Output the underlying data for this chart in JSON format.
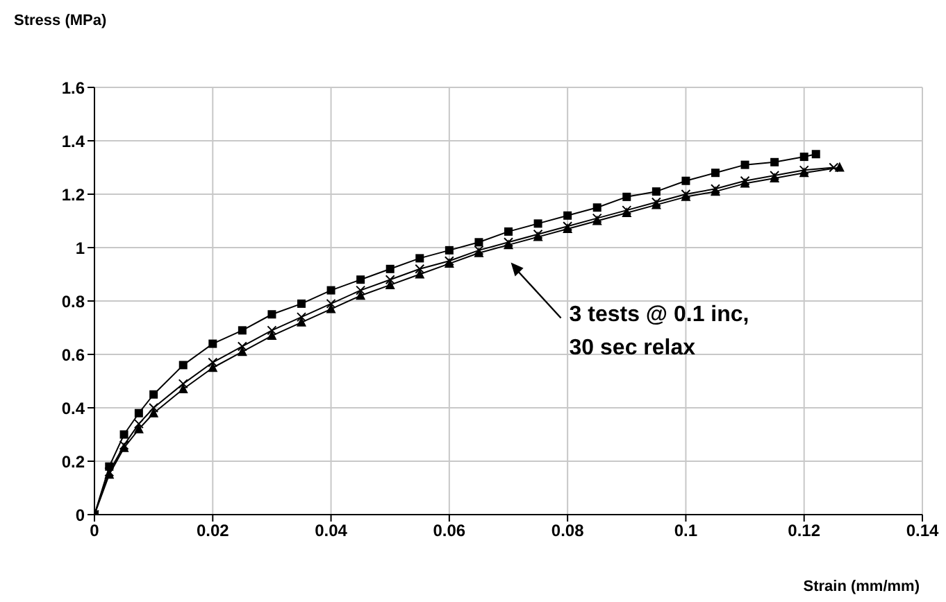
{
  "chart_data": {
    "type": "line",
    "xlabel": "Strain (mm/mm)",
    "ylabel": "Stress (MPa)",
    "xlim": [
      0,
      0.14
    ],
    "xticks": [
      0,
      0.02,
      0.04,
      0.06,
      0.08,
      0.1,
      0.12,
      0.14
    ],
    "ylim": [
      0,
      1.6
    ],
    "yticks": [
      0,
      0.2,
      0.4,
      0.6,
      0.8,
      1,
      1.2,
      1.4,
      1.6
    ],
    "grid": true,
    "legend": false,
    "series": [
      {
        "color": "#000000",
        "marker": "square",
        "x": [
          0,
          0.0025,
          0.005,
          0.0075,
          0.01,
          0.015,
          0.02,
          0.025,
          0.03,
          0.035,
          0.04,
          0.045,
          0.05,
          0.055,
          0.06,
          0.065,
          0.07,
          0.075,
          0.08,
          0.085,
          0.09,
          0.095,
          0.1,
          0.105,
          0.11,
          0.115,
          0.12,
          0.122
        ],
        "values": [
          0,
          0.18,
          0.3,
          0.38,
          0.45,
          0.56,
          0.64,
          0.69,
          0.75,
          0.79,
          0.84,
          0.88,
          0.92,
          0.96,
          0.99,
          1.02,
          1.06,
          1.09,
          1.12,
          1.15,
          1.19,
          1.21,
          1.25,
          1.28,
          1.31,
          1.32,
          1.34,
          1.35
        ]
      },
      {
        "color": "#000000",
        "marker": "cross",
        "x": [
          0,
          0.0025,
          0.005,
          0.0075,
          0.01,
          0.015,
          0.02,
          0.025,
          0.03,
          0.035,
          0.04,
          0.045,
          0.05,
          0.055,
          0.06,
          0.065,
          0.07,
          0.075,
          0.08,
          0.085,
          0.09,
          0.095,
          0.1,
          0.105,
          0.11,
          0.115,
          0.12,
          0.125
        ],
        "values": [
          0,
          0.16,
          0.26,
          0.34,
          0.4,
          0.49,
          0.57,
          0.63,
          0.69,
          0.74,
          0.79,
          0.84,
          0.88,
          0.92,
          0.95,
          0.99,
          1.02,
          1.05,
          1.08,
          1.11,
          1.14,
          1.17,
          1.2,
          1.22,
          1.25,
          1.27,
          1.29,
          1.3
        ]
      },
      {
        "color": "#000000",
        "marker": "triangle",
        "x": [
          0,
          0.0025,
          0.005,
          0.0075,
          0.01,
          0.015,
          0.02,
          0.025,
          0.03,
          0.035,
          0.04,
          0.045,
          0.05,
          0.055,
          0.06,
          0.065,
          0.07,
          0.075,
          0.08,
          0.085,
          0.09,
          0.095,
          0.1,
          0.105,
          0.11,
          0.115,
          0.12,
          0.126
        ],
        "values": [
          0,
          0.15,
          0.25,
          0.32,
          0.38,
          0.47,
          0.55,
          0.61,
          0.67,
          0.72,
          0.77,
          0.82,
          0.86,
          0.9,
          0.94,
          0.98,
          1.01,
          1.04,
          1.07,
          1.1,
          1.13,
          1.16,
          1.19,
          1.21,
          1.24,
          1.26,
          1.28,
          1.3
        ]
      }
    ],
    "annotations": [
      "3 tests @ 0.1 inc,\n30 sec relax"
    ]
  }
}
